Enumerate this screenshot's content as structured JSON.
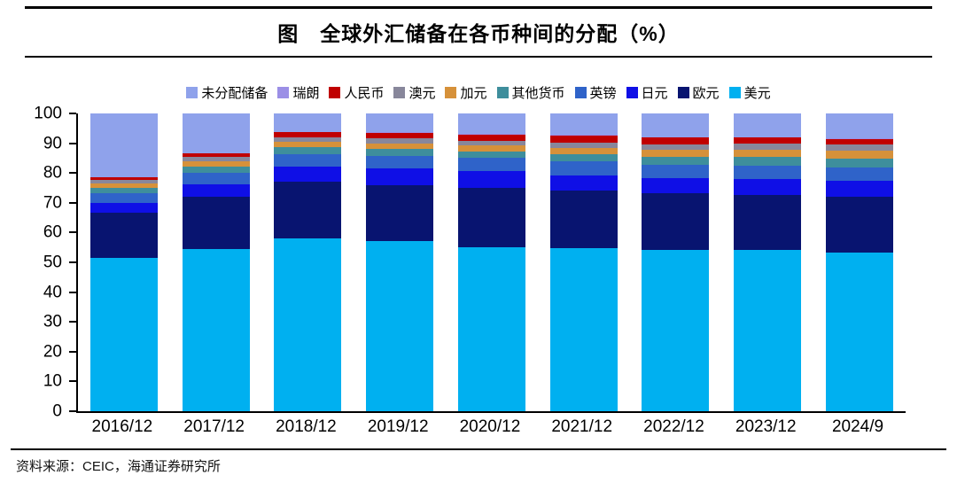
{
  "title": "图　全球外汇储备在各币种间的分配（%）",
  "source": "资料来源：CEIC，海通证券研究所",
  "chart_data": {
    "type": "bar",
    "stacked": true,
    "title": "全球外汇储备在各币种间的分配（%）",
    "xlabel": "",
    "ylabel": "",
    "ylim": [
      0,
      100
    ],
    "yticks": [
      0,
      10,
      20,
      30,
      40,
      50,
      60,
      70,
      80,
      90,
      100
    ],
    "grid": false,
    "legend_position": "top",
    "axis_color": "#000000",
    "categories": [
      "2016/12",
      "2017/12",
      "2018/12",
      "2019/12",
      "2020/12",
      "2021/12",
      "2022/12",
      "2023/12",
      "2024/9"
    ],
    "legend_order": [
      "未分配储备",
      "瑞朗",
      "人民币",
      "澳元",
      "加元",
      "其他货币",
      "英镑",
      "日元",
      "欧元",
      "美元"
    ],
    "series": [
      {
        "name": "美元",
        "color": "#00B0F0",
        "values": [
          51.5,
          54.5,
          58.0,
          57.0,
          55.0,
          54.8,
          54.1,
          54.1,
          53.3
        ]
      },
      {
        "name": "欧元",
        "color": "#081470",
        "values": [
          15.3,
          17.5,
          19.2,
          19.0,
          19.9,
          19.3,
          19.0,
          18.6,
          18.6
        ]
      },
      {
        "name": "日元",
        "color": "#0F0FE6",
        "values": [
          3.1,
          4.2,
          4.9,
          5.5,
          5.7,
          5.2,
          5.1,
          5.3,
          5.4
        ]
      },
      {
        "name": "英镑",
        "color": "#2F63C9",
        "values": [
          3.4,
          3.9,
          4.2,
          4.3,
          4.4,
          4.5,
          4.6,
          4.5,
          4.6
        ]
      },
      {
        "name": "其他货币",
        "color": "#3E8E9C",
        "values": [
          1.6,
          2.1,
          2.3,
          2.4,
          2.3,
          2.4,
          2.7,
          2.9,
          3.0
        ]
      },
      {
        "name": "加元",
        "color": "#D6913A",
        "values": [
          1.5,
          1.7,
          1.8,
          1.8,
          1.9,
          2.2,
          2.2,
          2.4,
          2.5
        ]
      },
      {
        "name": "澳元",
        "color": "#88879B",
        "values": [
          1.4,
          1.5,
          1.6,
          1.6,
          1.7,
          1.7,
          1.8,
          2.0,
          2.1
        ]
      },
      {
        "name": "人民币",
        "color": "#C00000",
        "values": [
          0.8,
          1.1,
          1.7,
          1.9,
          2.1,
          2.6,
          2.4,
          2.1,
          2.0
        ]
      },
      {
        "name": "瑞朗",
        "color": "#9B8FE6",
        "values": [
          0.1,
          0.2,
          0.2,
          0.2,
          0.2,
          0.2,
          0.2,
          0.2,
          0.2
        ]
      },
      {
        "name": "未分配储备",
        "color": "#8FA2EB",
        "values": [
          21.3,
          13.3,
          6.1,
          6.3,
          6.8,
          7.1,
          7.9,
          7.9,
          8.3
        ]
      }
    ]
  }
}
